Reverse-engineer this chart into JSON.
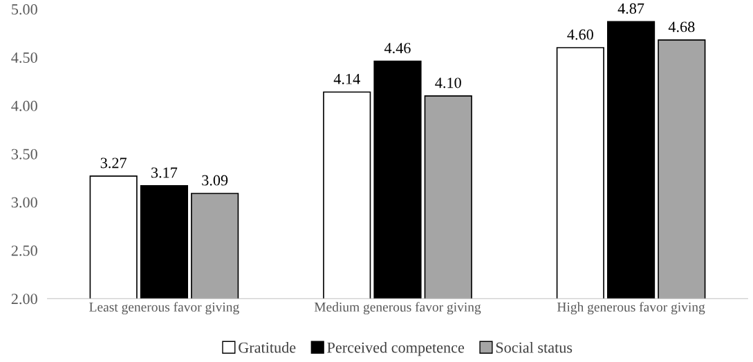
{
  "chart_data": {
    "type": "bar",
    "categories": [
      "Least generous favor giving",
      "Medium generous favor giving",
      "High generous favor giving"
    ],
    "series": [
      {
        "name": "Gratitude",
        "color": "#ffffff",
        "values": [
          3.27,
          4.14,
          4.6
        ],
        "value_labels": [
          "3.27",
          "4.14",
          "4.60"
        ]
      },
      {
        "name": "Perceived competence",
        "color": "#000000",
        "values": [
          3.17,
          4.46,
          4.87
        ],
        "value_labels": [
          "3.17",
          "4.46",
          "4.87"
        ]
      },
      {
        "name": "Social status",
        "color": "#a5a5a5",
        "values": [
          3.09,
          4.1,
          4.68
        ],
        "value_labels": [
          "3.09",
          "4.10",
          "4.68"
        ]
      }
    ],
    "ylim": [
      2,
      5
    ],
    "yticks": [
      {
        "value": 2,
        "label": "2.00"
      },
      {
        "value": 2.5,
        "label": "2.50"
      },
      {
        "value": 3,
        "label": "3.00"
      },
      {
        "value": 3.5,
        "label": "3.50"
      },
      {
        "value": 4,
        "label": "4.00"
      },
      {
        "value": 4.5,
        "label": "4.50"
      },
      {
        "value": 5,
        "label": "5.00"
      }
    ],
    "grid": false,
    "legend": "bottom"
  }
}
